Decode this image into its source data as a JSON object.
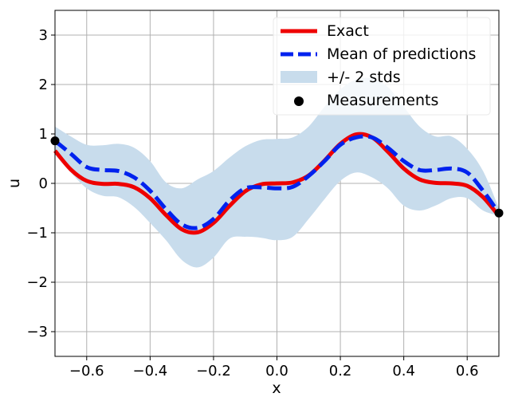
{
  "chart_data": {
    "type": "line",
    "title": "",
    "xlabel": "x",
    "ylabel": "u",
    "xlim": [
      -0.7,
      0.7
    ],
    "ylim": [
      -3.5,
      3.5
    ],
    "grid": true,
    "legend_position": "top-right",
    "x_ticks": [
      -0.6,
      -0.4,
      -0.2,
      0.0,
      0.2,
      0.4,
      0.6
    ],
    "x_tick_labels": [
      "−0.6",
      "−0.4",
      "−0.2",
      "0.0",
      "0.2",
      "0.4",
      "0.6"
    ],
    "y_ticks": [
      3,
      2,
      1,
      0,
      -1,
      -2,
      -3
    ],
    "y_tick_labels": [
      "3",
      "2",
      "1",
      "0",
      "−1",
      "−2",
      "−3"
    ],
    "colors": {
      "exact": "#ee0000",
      "mean": "#0022ee",
      "band": "#c8dcec",
      "measurements": "#000000",
      "grid": "#b0b0b0"
    },
    "series": [
      {
        "name": "Exact",
        "style": "solid",
        "x": [
          -0.7,
          -0.65,
          -0.6,
          -0.55,
          -0.5,
          -0.45,
          -0.4,
          -0.35,
          -0.3,
          -0.25,
          -0.2,
          -0.15,
          -0.1,
          -0.05,
          0.0,
          0.05,
          0.1,
          0.15,
          0.2,
          0.25,
          0.3,
          0.35,
          0.4,
          0.45,
          0.5,
          0.55,
          0.6,
          0.65,
          0.7
        ],
        "values": [
          0.66,
          0.28,
          0.05,
          -0.01,
          -0.01,
          -0.08,
          -0.3,
          -0.64,
          -0.93,
          -0.99,
          -0.8,
          -0.46,
          -0.16,
          -0.02,
          0.0,
          0.02,
          0.16,
          0.46,
          0.8,
          0.99,
          0.93,
          0.64,
          0.3,
          0.08,
          0.01,
          0.0,
          -0.05,
          -0.28,
          -0.66
        ]
      },
      {
        "name": "Mean of predictions",
        "style": "dashed",
        "x": [
          -0.7,
          -0.65,
          -0.6,
          -0.55,
          -0.5,
          -0.45,
          -0.4,
          -0.35,
          -0.3,
          -0.25,
          -0.2,
          -0.15,
          -0.1,
          -0.05,
          0.0,
          0.05,
          0.1,
          0.15,
          0.2,
          0.25,
          0.3,
          0.35,
          0.4,
          0.45,
          0.5,
          0.55,
          0.6,
          0.65,
          0.7
        ],
        "values": [
          0.86,
          0.6,
          0.33,
          0.27,
          0.25,
          0.12,
          -0.15,
          -0.52,
          -0.83,
          -0.9,
          -0.72,
          -0.35,
          -0.1,
          -0.08,
          -0.1,
          -0.07,
          0.15,
          0.45,
          0.78,
          0.93,
          0.93,
          0.72,
          0.45,
          0.27,
          0.27,
          0.3,
          0.22,
          -0.15,
          -0.6
        ]
      }
    ],
    "band": {
      "name": "+/- 2 stds",
      "x": [
        -0.7,
        -0.65,
        -0.6,
        -0.55,
        -0.5,
        -0.45,
        -0.4,
        -0.35,
        -0.3,
        -0.25,
        -0.2,
        -0.15,
        -0.1,
        -0.05,
        0.0,
        0.05,
        0.1,
        0.15,
        0.2,
        0.25,
        0.3,
        0.35,
        0.4,
        0.45,
        0.5,
        0.55,
        0.6,
        0.65,
        0.7
      ],
      "upper": [
        1.15,
        0.95,
        0.78,
        0.77,
        0.8,
        0.72,
        0.45,
        0.02,
        -0.1,
        0.08,
        0.25,
        0.52,
        0.75,
        0.88,
        0.9,
        0.93,
        1.15,
        1.55,
        1.9,
        2.1,
        2.12,
        1.95,
        1.55,
        1.15,
        0.95,
        0.95,
        0.7,
        0.25,
        -0.5
      ],
      "lower": [
        0.58,
        0.22,
        -0.1,
        -0.25,
        -0.28,
        -0.48,
        -0.8,
        -1.15,
        -1.55,
        -1.7,
        -1.5,
        -1.12,
        -1.08,
        -1.1,
        -1.15,
        -1.08,
        -0.72,
        -0.32,
        0.05,
        0.22,
        0.12,
        -0.1,
        -0.45,
        -0.55,
        -0.45,
        -0.3,
        -0.3,
        -0.55,
        -0.65
      ]
    },
    "measurements": {
      "name": "Measurements",
      "x": [
        -0.7,
        0.7
      ],
      "y": [
        0.86,
        -0.6
      ]
    }
  }
}
